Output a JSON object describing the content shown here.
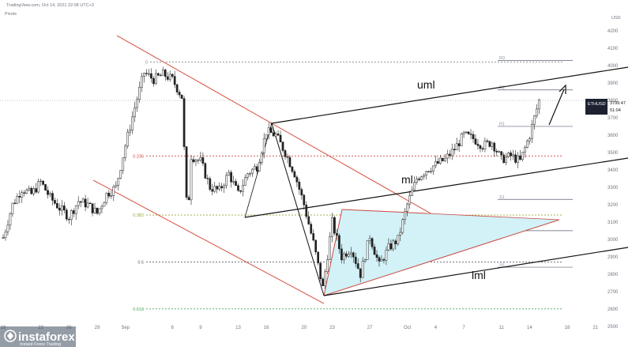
{
  "header": {
    "source_line": "TradingView.com, Oct 14, 2021 22:08 UTC+3",
    "indicator": "Pivots",
    "currency": "USD"
  },
  "price_tag": {
    "symbol": "ETHUSD",
    "price": "3799.47",
    "countdown": "51:04"
  },
  "logo": {
    "name": "instaforex",
    "tagline": "Instant Forex Trading"
  },
  "annotations": {
    "upper": "uml",
    "middle": "ml",
    "lower": "lml"
  },
  "chart_data": {
    "type": "candlestick",
    "symbol": "ETHUSD",
    "y_ticks": [
      2500,
      2600,
      2700,
      2800,
      2900,
      3000,
      3100,
      3200,
      3300,
      3400,
      3500,
      3600,
      3700,
      3800,
      3900,
      4000,
      4100,
      4200
    ],
    "ylim": [
      2440,
      4250
    ],
    "x_ticks": [
      {
        "label": "19",
        "i": 0
      },
      {
        "label": "23",
        "i": 4
      },
      {
        "label": "26",
        "i": 7
      },
      {
        "label": "29",
        "i": 10
      },
      {
        "label": "Sep",
        "i": 13
      },
      {
        "label": "6",
        "i": 18
      },
      {
        "label": "9",
        "i": 21
      },
      {
        "label": "13",
        "i": 25
      },
      {
        "label": "16",
        "i": 28
      },
      {
        "label": "20",
        "i": 32
      },
      {
        "label": "23",
        "i": 35
      },
      {
        "label": "27",
        "i": 39
      },
      {
        "label": "Oct",
        "i": 43
      },
      {
        "label": "4",
        "i": 46
      },
      {
        "label": "7",
        "i": 49
      },
      {
        "label": "11",
        "i": 53
      },
      {
        "label": "14",
        "i": 56
      },
      {
        "label": "18",
        "i": 60
      },
      {
        "label": "21",
        "i": 63
      }
    ],
    "price_path": [
      [
        0,
        3010
      ],
      [
        1,
        3200
      ],
      [
        2,
        3290
      ],
      [
        3,
        3260
      ],
      [
        4,
        3330
      ],
      [
        5,
        3240
      ],
      [
        6,
        3180
      ],
      [
        7,
        3130
      ],
      [
        8,
        3220
      ],
      [
        9,
        3200
      ],
      [
        10,
        3150
      ],
      [
        11,
        3260
      ],
      [
        12,
        3300
      ],
      [
        13,
        3540
      ],
      [
        14,
        3760
      ],
      [
        15,
        3960
      ],
      [
        16,
        3920
      ],
      [
        17,
        3950
      ],
      [
        18,
        3920
      ],
      [
        19,
        3820
      ],
      [
        19.6,
        3100
      ],
      [
        20,
        3480
      ],
      [
        21,
        3450
      ],
      [
        22,
        3300
      ],
      [
        23,
        3280
      ],
      [
        24,
        3380
      ],
      [
        25,
        3260
      ],
      [
        26,
        3380
      ],
      [
        27,
        3420
      ],
      [
        28,
        3620
      ],
      [
        29,
        3600
      ],
      [
        30,
        3500
      ],
      [
        31,
        3380
      ],
      [
        32,
        3200
      ],
      [
        33,
        2980
      ],
      [
        34,
        2720
      ],
      [
        35,
        3100
      ],
      [
        36,
        2900
      ],
      [
        37,
        2950
      ],
      [
        38,
        2800
      ],
      [
        39,
        3020
      ],
      [
        40,
        2850
      ],
      [
        41,
        2950
      ],
      [
        42,
        3000
      ],
      [
        43,
        3200
      ],
      [
        44,
        3350
      ],
      [
        45,
        3400
      ],
      [
        46,
        3430
      ],
      [
        47,
        3460
      ],
      [
        48,
        3520
      ],
      [
        49,
        3600
      ],
      [
        50,
        3580
      ],
      [
        51,
        3540
      ],
      [
        52,
        3560
      ],
      [
        53,
        3460
      ],
      [
        54,
        3480
      ],
      [
        55,
        3450
      ],
      [
        56,
        3600
      ],
      [
        57,
        3800
      ]
    ],
    "pivot_levels": [
      {
        "label": "R3",
        "value": 4030
      },
      {
        "label": "R2",
        "value": 3860
      },
      {
        "label": "R1",
        "value": 3650
      },
      {
        "label": "S1",
        "value": 3230
      },
      {
        "label": "S2",
        "value": 3050
      },
      {
        "label": "S3",
        "value": 2840
      }
    ],
    "fib_levels": [
      {
        "label": "0",
        "value": 4020
      },
      {
        "label": "0.236",
        "value": 3480
      },
      {
        "label": "0.382",
        "value": 3140
      },
      {
        "label": "0.5",
        "value": 2870
      },
      {
        "label": "0.618",
        "value": 2600
      }
    ],
    "current_price": 3799.47,
    "colors": {
      "channel_red": "#d9604f",
      "pitchfork": "#111111",
      "triangle_fill": "#d2f2f8",
      "triangle_edge": "#c9473c",
      "price_tag_bg": "#1c2230",
      "pivot_line": "#5b6272",
      "fib_0": "#8a8a8a",
      "fib_0236": "#c9473c",
      "fib_0382": "#9aa53a",
      "fib_05": "#5b6272",
      "fib_0618": "#4aa35a"
    }
  }
}
